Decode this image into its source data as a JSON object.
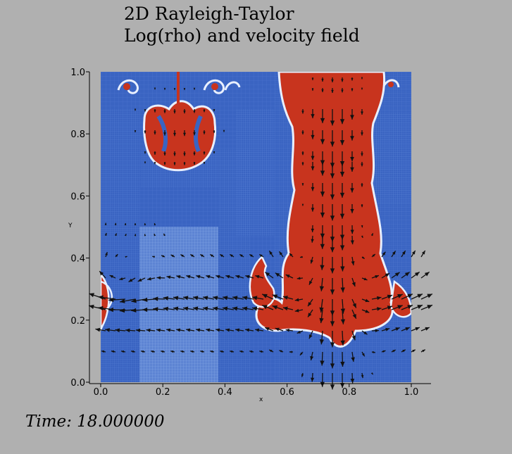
{
  "title_line1": "2D Rayleigh-Taylor",
  "title_line2": "Log(rho) and velocity field",
  "time_label": "Time: 18.000000",
  "x_axis": {
    "label": "x",
    "ticks": [
      "0.0",
      "0.2",
      "0.4",
      "0.6",
      "0.8",
      "1.0"
    ]
  },
  "y_axis": {
    "label": "Y",
    "ticks": [
      "0.0",
      "0.2",
      "0.4",
      "0.6",
      "0.8",
      "1.0"
    ]
  },
  "colors": {
    "background": "#b0b0b0",
    "heavy_fluid": "#c8341e",
    "light_fluid": "#3a64c2",
    "interface": "#e9f0ff",
    "arrows": "#111111"
  }
}
